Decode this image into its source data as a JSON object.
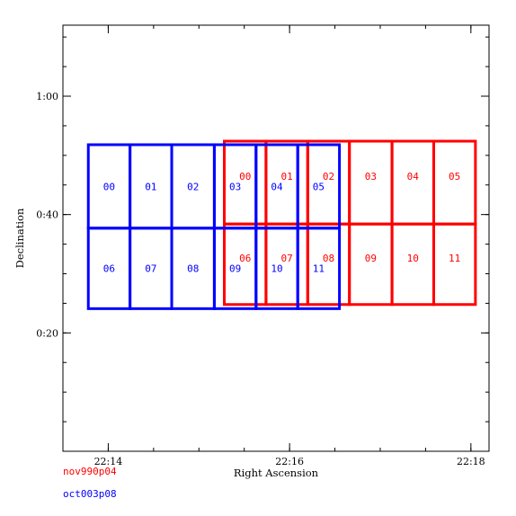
{
  "chart_data": {
    "type": "scatter",
    "xlabel": "Right Ascension",
    "ylabel": "Declination",
    "x_unit": "minutes of RA after 22h",
    "y_unit": "arcminutes of declination",
    "xlim": [
      13.5,
      18.2
    ],
    "ylim": [
      0,
      72
    ],
    "x_ticks": [
      {
        "value": 14,
        "label": "22:14"
      },
      {
        "value": 16,
        "label": "22:16"
      },
      {
        "value": 18,
        "label": "22:18"
      }
    ],
    "y_ticks": [
      {
        "value": 20,
        "label": "0:20"
      },
      {
        "value": 40,
        "label": "0:40"
      },
      {
        "value": 60,
        "label": "1:00"
      }
    ],
    "grid": false,
    "series": [
      {
        "name": "nov990p04",
        "color": "#ff0000",
        "rows": [
          {
            "top": 52.4,
            "bottom": 38.4,
            "dividers": [
              15.28,
              15.74,
              16.2,
              16.66,
              17.13,
              17.59,
              18.05
            ],
            "labels": [
              "00",
              "01",
              "02",
              "03",
              "04",
              "05"
            ]
          },
          {
            "top": 38.4,
            "bottom": 24.8,
            "dividers": [
              15.28,
              15.74,
              16.2,
              16.66,
              17.13,
              17.59,
              18.05
            ],
            "labels": [
              "06",
              "07",
              "08",
              "09",
              "10",
              "11"
            ]
          }
        ]
      },
      {
        "name": "oct003p08",
        "color": "#0000ff",
        "rows": [
          {
            "top": 51.8,
            "bottom": 37.7,
            "dividers": [
              13.78,
              14.24,
              14.7,
              15.17,
              15.63,
              16.09,
              16.55
            ],
            "labels": [
              "00",
              "01",
              "02",
              "03",
              "04",
              "05"
            ]
          },
          {
            "top": 37.7,
            "bottom": 24.1,
            "dividers": [
              13.78,
              14.24,
              14.7,
              15.17,
              15.63,
              16.09,
              16.55
            ],
            "labels": [
              "06",
              "07",
              "08",
              "09",
              "10",
              "11"
            ]
          }
        ]
      }
    ]
  }
}
